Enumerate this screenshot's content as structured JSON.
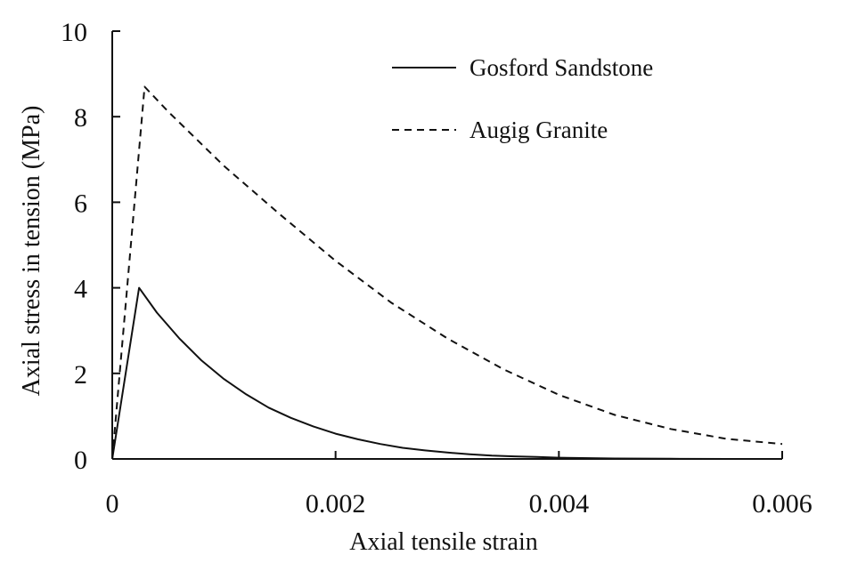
{
  "chart_data": {
    "type": "line",
    "xlabel": "Axial tensile strain",
    "ylabel": "Axial stress in tension (MPa)",
    "xlim": [
      0,
      0.006
    ],
    "ylim": [
      0,
      10
    ],
    "x_ticks": [
      "0",
      "0.002",
      "0.004",
      "0.006"
    ],
    "y_ticks": [
      "0",
      "2",
      "4",
      "6",
      "8",
      "10"
    ],
    "grid": false,
    "legend_position": "top-right",
    "series": [
      {
        "name": "Gosford Sandstone",
        "line_style": "solid",
        "color": "#111111",
        "points": [
          [
            0,
            0
          ],
          [
            0.00024,
            4.0
          ],
          [
            0.0004,
            3.42
          ],
          [
            0.0006,
            2.82
          ],
          [
            0.0008,
            2.3
          ],
          [
            0.001,
            1.87
          ],
          [
            0.0012,
            1.51
          ],
          [
            0.0014,
            1.2
          ],
          [
            0.0016,
            0.96
          ],
          [
            0.0018,
            0.76
          ],
          [
            0.002,
            0.59
          ],
          [
            0.0022,
            0.46
          ],
          [
            0.0024,
            0.35
          ],
          [
            0.0026,
            0.26
          ],
          [
            0.0028,
            0.2
          ],
          [
            0.003,
            0.15
          ],
          [
            0.0032,
            0.11
          ],
          [
            0.0034,
            0.08
          ],
          [
            0.0036,
            0.06
          ],
          [
            0.0038,
            0.045
          ],
          [
            0.004,
            0.03
          ],
          [
            0.0045,
            0.01
          ],
          [
            0.005,
            0.005
          ],
          [
            0.0055,
            0.0
          ],
          [
            0.006,
            0.0
          ]
        ]
      },
      {
        "name": "Augig Granite",
        "line_style": "dashed",
        "color": "#111111",
        "points": [
          [
            0,
            0
          ],
          [
            0.00029,
            8.7
          ],
          [
            0.0005,
            8.12
          ],
          [
            0.001,
            6.85
          ],
          [
            0.0015,
            5.72
          ],
          [
            0.002,
            4.63
          ],
          [
            0.0025,
            3.65
          ],
          [
            0.003,
            2.82
          ],
          [
            0.0035,
            2.1
          ],
          [
            0.004,
            1.5
          ],
          [
            0.0045,
            1.03
          ],
          [
            0.005,
            0.7
          ],
          [
            0.0055,
            0.47
          ],
          [
            0.006,
            0.35
          ]
        ]
      }
    ]
  }
}
